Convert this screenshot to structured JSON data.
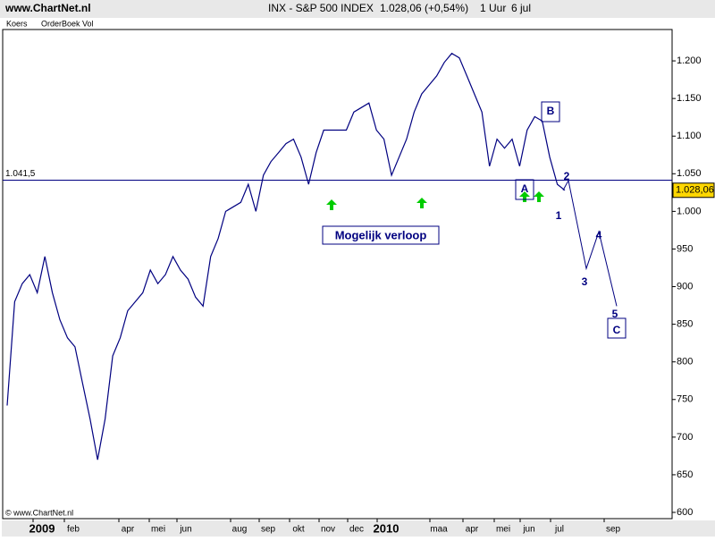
{
  "chart_data": {
    "type": "line",
    "site": "www.ChartNet.nl",
    "title": "INX - S&P 500 INDEX",
    "last_change": "1.028,06 (+0,54%)",
    "interval": "1 Uur",
    "date": "6 jul",
    "tabs": [
      "Koers",
      "OrderBoek Vol"
    ],
    "copyright": "© www.ChartNet.nl",
    "color": "#000080",
    "xtick_labels": [
      "2009",
      "feb",
      "apr",
      "mei",
      "jun",
      "aug",
      "sep",
      "okt",
      "nov",
      "dec",
      "2010",
      "maa",
      "apr",
      "mei",
      "jun",
      "jul",
      "sep"
    ],
    "values": [
      742,
      880,
      904,
      916,
      892,
      940,
      892,
      856,
      832,
      820,
      772,
      724,
      670,
      724,
      808,
      832,
      868,
      880,
      892,
      922,
      904,
      916,
      940,
      922,
      910,
      886,
      874,
      940,
      964,
      1000,
      1006,
      1012,
      1036,
      1000,
      1048,
      1066,
      1078,
      1090,
      1096,
      1072,
      1036,
      1078,
      1108,
      1108,
      1108,
      1108,
      1132,
      1138,
      1144,
      1108,
      1096,
      1048,
      1072,
      1096,
      1132,
      1156,
      1168,
      1180,
      1198,
      1210,
      1204,
      1180,
      1156,
      1132,
      1060,
      1096,
      1084,
      1096,
      1060,
      1108,
      1126,
      1120,
      1072,
      1036,
      1028
    ],
    "ylim": [
      600,
      1250
    ],
    "yticks": [
      600,
      650,
      700,
      750,
      800,
      850,
      900,
      950,
      {
        "value": 1000,
        "label": "1.000"
      },
      {
        "value": 1050,
        "label": "1.050"
      },
      {
        "value": 1100,
        "label": "1.100"
      },
      {
        "value": 1150,
        "label": "1.150"
      },
      {
        "value": 1200,
        "label": "1.200"
      }
    ],
    "reference_line": {
      "value": 1041.5,
      "label": "1.041,5"
    },
    "last_price": {
      "value": 1028.06,
      "label": "1.028,06"
    },
    "projection": {
      "values": [
        1028,
        1041,
        924,
        973,
        874
      ]
    },
    "annotations": [
      "Mogelijk verloop",
      "1",
      "2",
      "3",
      "4",
      "5",
      "A",
      "B",
      "C"
    ]
  }
}
